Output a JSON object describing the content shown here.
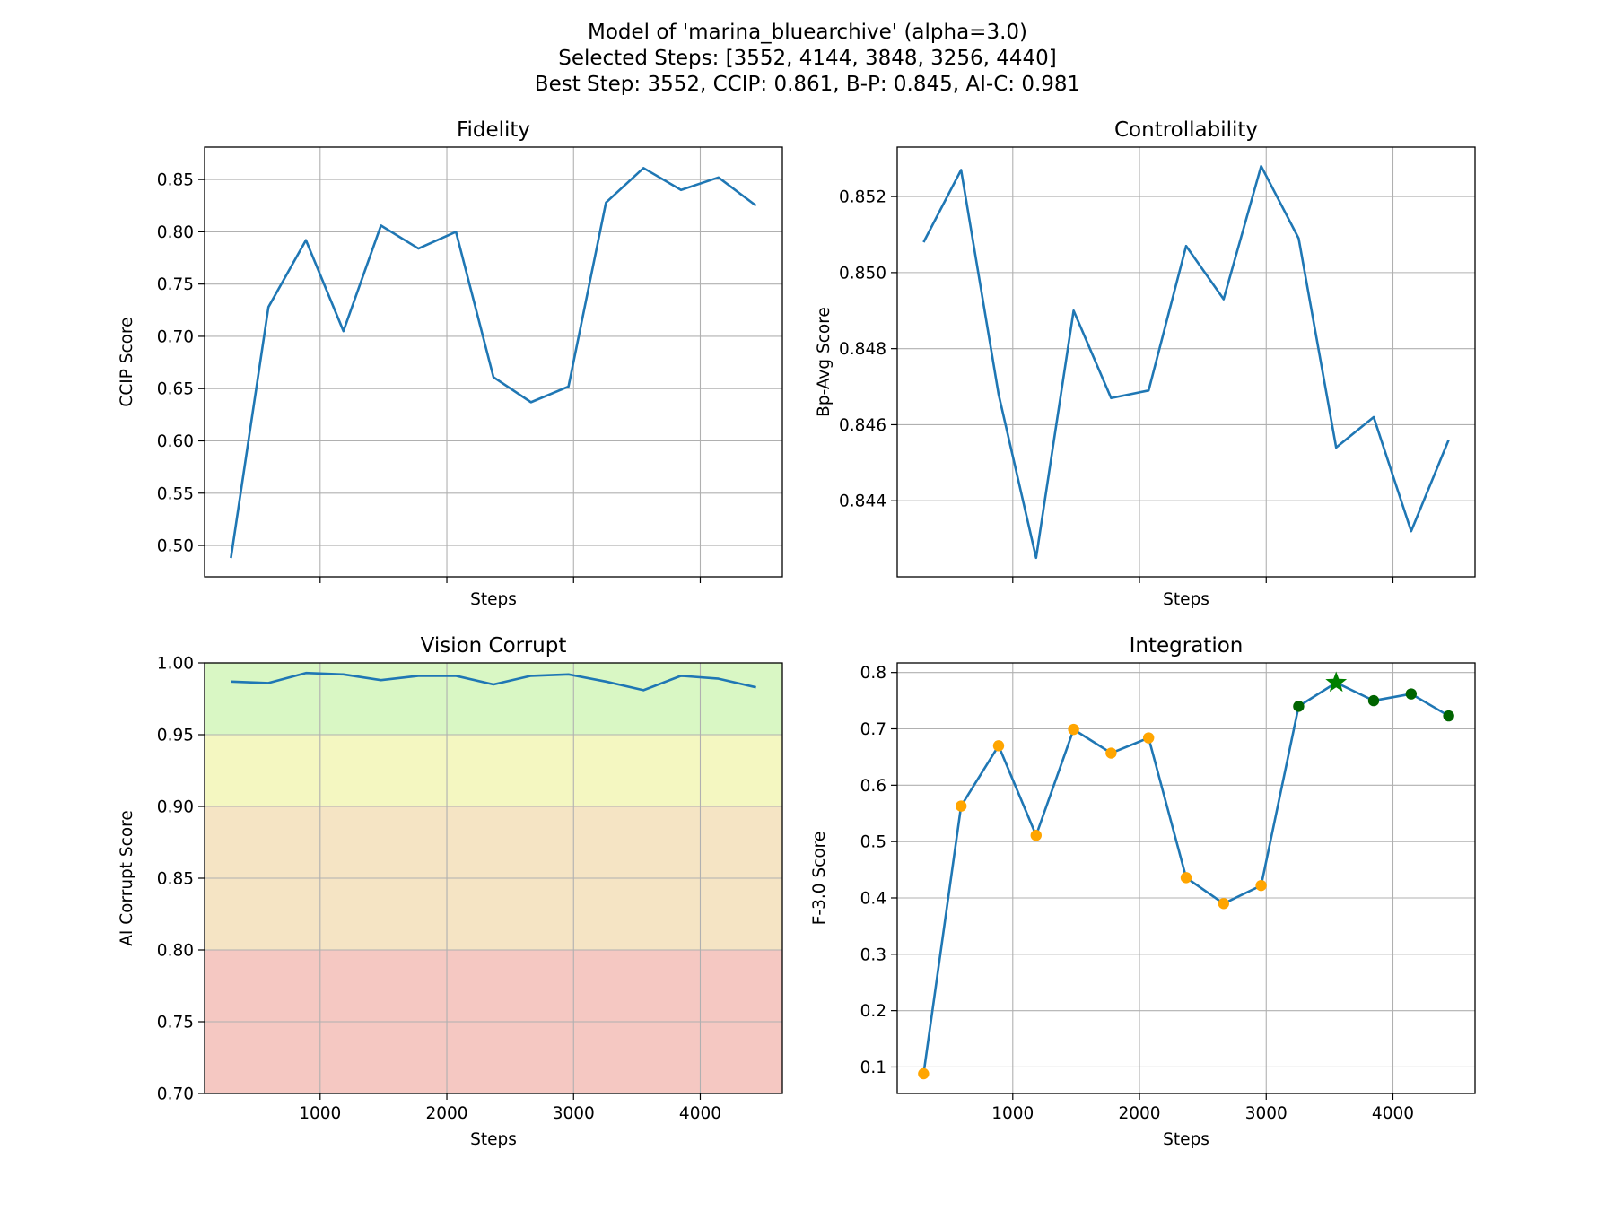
{
  "suptitle": {
    "line1": "Model of 'marina_bluearchive' (alpha=3.0)",
    "line2": "Selected Steps: [3552, 4144, 3848, 3256, 4440]",
    "line3": "Best Step: 3552, CCIP: 0.861, B-P: 0.845, AI-C: 0.981"
  },
  "colors": {
    "line": "#1f77b4",
    "grid": "#b0b0b0",
    "unselected_marker": "#ffa500",
    "selected_marker": "#006400",
    "best_marker": "#008000",
    "band_green": "#d9f7c4",
    "band_yellow": "#f4f7c1",
    "band_orange": "#f5e4c4",
    "band_red": "#f5c8c2"
  },
  "chart_data": [
    {
      "id": "fidelity",
      "type": "line",
      "title": "Fidelity",
      "xlabel": "Steps",
      "ylabel": "CCIP Score",
      "x": [
        296,
        592,
        888,
        1184,
        1480,
        1776,
        2072,
        2368,
        2664,
        2960,
        3256,
        3552,
        3848,
        4144,
        4440
      ],
      "values": [
        0.488,
        0.728,
        0.792,
        0.705,
        0.806,
        0.784,
        0.8,
        0.661,
        0.637,
        0.652,
        0.828,
        0.861,
        0.84,
        0.852,
        0.825
      ],
      "xlim": [
        88,
        4648
      ],
      "ylim": [
        0.47,
        0.881
      ],
      "xticks": [
        1000,
        2000,
        3000,
        4000
      ],
      "show_xticklabels": false,
      "yticks": [
        0.5,
        0.55,
        0.6,
        0.65,
        0.7,
        0.75,
        0.8,
        0.85
      ],
      "ytick_labels": [
        "0.50",
        "0.55",
        "0.60",
        "0.65",
        "0.70",
        "0.75",
        "0.80",
        "0.85"
      ],
      "grid": true
    },
    {
      "id": "controllability",
      "type": "line",
      "title": "Controllability",
      "xlabel": "Steps",
      "ylabel": "Bp-Avg Score",
      "x": [
        296,
        592,
        888,
        1184,
        1480,
        1776,
        2072,
        2368,
        2664,
        2960,
        3256,
        3552,
        3848,
        4144,
        4440
      ],
      "values": [
        0.8508,
        0.8527,
        0.8468,
        0.8425,
        0.849,
        0.8467,
        0.8469,
        0.8507,
        0.8493,
        0.8528,
        0.8509,
        0.8454,
        0.8462,
        0.8432,
        0.8456
      ],
      "xlim": [
        88,
        4648
      ],
      "ylim": [
        0.842,
        0.8533
      ],
      "xticks": [
        1000,
        2000,
        3000,
        4000
      ],
      "show_xticklabels": false,
      "yticks": [
        0.844,
        0.846,
        0.848,
        0.85,
        0.852
      ],
      "ytick_labels": [
        "0.844",
        "0.846",
        "0.848",
        "0.850",
        "0.852"
      ],
      "grid": true
    },
    {
      "id": "vision_corrupt",
      "type": "line",
      "title": "Vision Corrupt",
      "xlabel": "Steps",
      "ylabel": "AI Corrupt Score",
      "x": [
        296,
        592,
        888,
        1184,
        1480,
        1776,
        2072,
        2368,
        2664,
        2960,
        3256,
        3552,
        3848,
        4144,
        4440
      ],
      "values": [
        0.987,
        0.986,
        0.993,
        0.992,
        0.988,
        0.991,
        0.991,
        0.985,
        0.991,
        0.992,
        0.987,
        0.981,
        0.991,
        0.989,
        0.983
      ],
      "xlim": [
        88,
        4648
      ],
      "ylim": [
        0.7,
        1.0
      ],
      "xticks": [
        1000,
        2000,
        3000,
        4000
      ],
      "xtick_labels": [
        "1000",
        "2000",
        "3000",
        "4000"
      ],
      "show_xticklabels": true,
      "yticks": [
        0.7,
        0.75,
        0.8,
        0.85,
        0.9,
        0.95,
        1.0
      ],
      "ytick_labels": [
        "0.70",
        "0.75",
        "0.80",
        "0.85",
        "0.90",
        "0.95",
        "1.00"
      ],
      "bands": [
        {
          "from": 0.95,
          "to": 1.0,
          "color": "#d9f7c4"
        },
        {
          "from": 0.9,
          "to": 0.95,
          "color": "#f4f7c1"
        },
        {
          "from": 0.8,
          "to": 0.9,
          "color": "#f5e4c4"
        },
        {
          "from": 0.7,
          "to": 0.8,
          "color": "#f5c8c2"
        }
      ],
      "grid": true
    },
    {
      "id": "integration",
      "type": "line",
      "title": "Integration",
      "xlabel": "Steps",
      "ylabel": "F-3.0 Score",
      "x": [
        296,
        592,
        888,
        1184,
        1480,
        1776,
        2072,
        2368,
        2664,
        2960,
        3256,
        3552,
        3848,
        4144,
        4440
      ],
      "values": [
        0.088,
        0.563,
        0.67,
        0.511,
        0.699,
        0.657,
        0.684,
        0.436,
        0.39,
        0.422,
        0.74,
        0.782,
        0.75,
        0.762,
        0.723
      ],
      "selected_steps": [
        3256,
        3848,
        4144,
        4440
      ],
      "best_step": 3552,
      "xlim": [
        88,
        4648
      ],
      "ylim": [
        0.053,
        0.817
      ],
      "xticks": [
        1000,
        2000,
        3000,
        4000
      ],
      "xtick_labels": [
        "1000",
        "2000",
        "3000",
        "4000"
      ],
      "show_xticklabels": true,
      "yticks": [
        0.1,
        0.2,
        0.3,
        0.4,
        0.5,
        0.6,
        0.7,
        0.8
      ],
      "ytick_labels": [
        "0.1",
        "0.2",
        "0.3",
        "0.4",
        "0.5",
        "0.6",
        "0.7",
        "0.8"
      ],
      "grid": true
    }
  ]
}
